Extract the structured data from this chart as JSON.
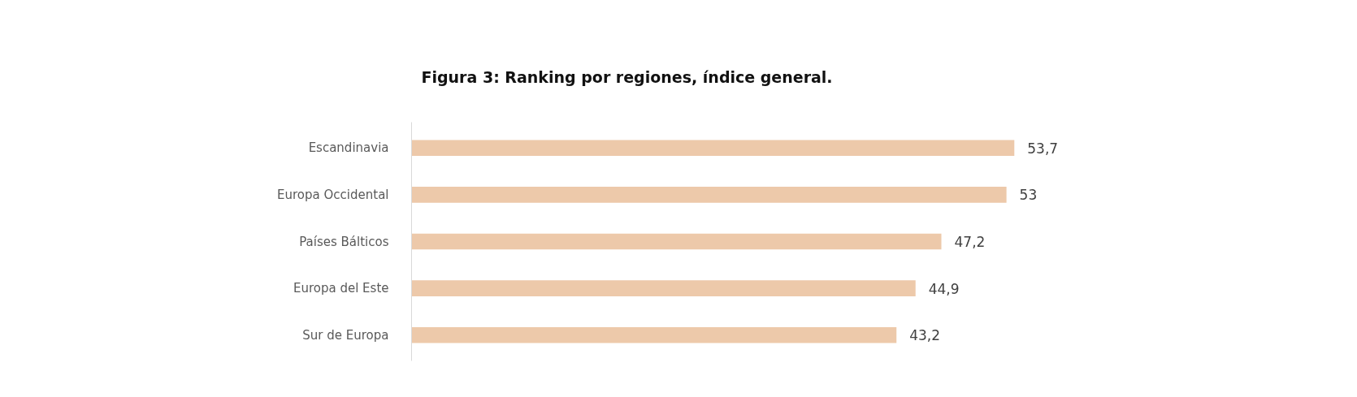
{
  "chart_data": {
    "type": "bar",
    "orientation": "horizontal",
    "title": "Figura 3: Ranking por regiones, índice general.",
    "categories": [
      "Escandinavia",
      "Europa Occidental",
      "Países Bálticos",
      "Europa del Este",
      "Sur de Europa"
    ],
    "values": [
      53.7,
      53,
      47.2,
      44.9,
      43.2
    ],
    "value_labels": [
      "53,7",
      "53",
      "47,2",
      "44,9",
      "43,2"
    ],
    "color": "#edc9aa",
    "grid": false
  }
}
